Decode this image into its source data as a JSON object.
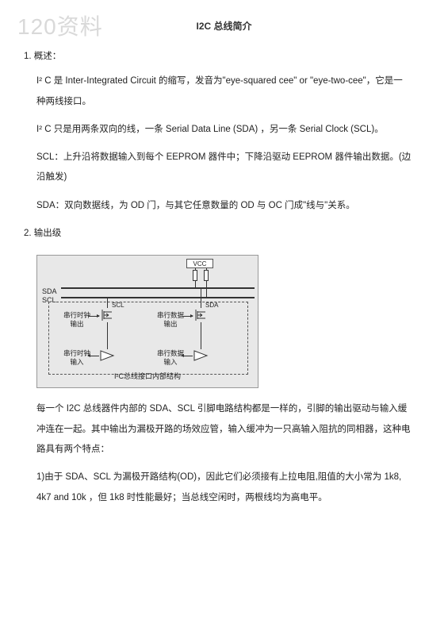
{
  "watermark": "120资料",
  "header_title": "I2C 总线简介",
  "section1": {
    "num": "1.  概述：",
    "p1": "I² C  是 Inter-Integrated Circuit 的缩写，发音为\"eye-squared cee\" or \"eye-two-cee\"，它是一种两线接口。",
    "p2": "I² C 只是用两条双向的线，一条 Serial Data Line (SDA)  ，另一条 Serial Clock (SCL)。",
    "p3": "SCL：上升沿将数据输入到每个 EEPROM 器件中；下降沿驱动 EEPROM 器件输出数据。(边沿触发)",
    "p4": "SDA：双向数据线，为 OD 门，与其它任意数量的 OD 与 OC 门成\"线与\"关系。"
  },
  "section2": {
    "num": "2.  输出级",
    "diagram": {
      "vcc": "VCC",
      "sda": "SDA",
      "scl": "SCL",
      "scl_tap": "SCL",
      "sda_tap": "SDA",
      "label_clock_out": "串行时钟\n输出",
      "label_data_out": "串行数据\n输出",
      "label_clock_in": "串行时钟\n输入",
      "label_data_in": "串行数据\n输入",
      "caption": "I²C总线接口内部结构"
    },
    "p1": "每一个 I2C 总线器件内部的 SDA、SCL 引脚电路结构都是一样的，引脚的输出驱动与输入缓冲连在一起。其中输出为漏极开路的场效应管，输入缓冲为一只高输入阻抗的同相器，这种电路具有两个特点：",
    "p2": "1)由于 SDA、SCL 为漏极开路结构(OD)，因此它们必须接有上拉电阻,阻值的大小常为 1k8, 4k7 and 10k ，但 1k8 时性能最好；当总线空闲时，两根线均为高电平。"
  }
}
